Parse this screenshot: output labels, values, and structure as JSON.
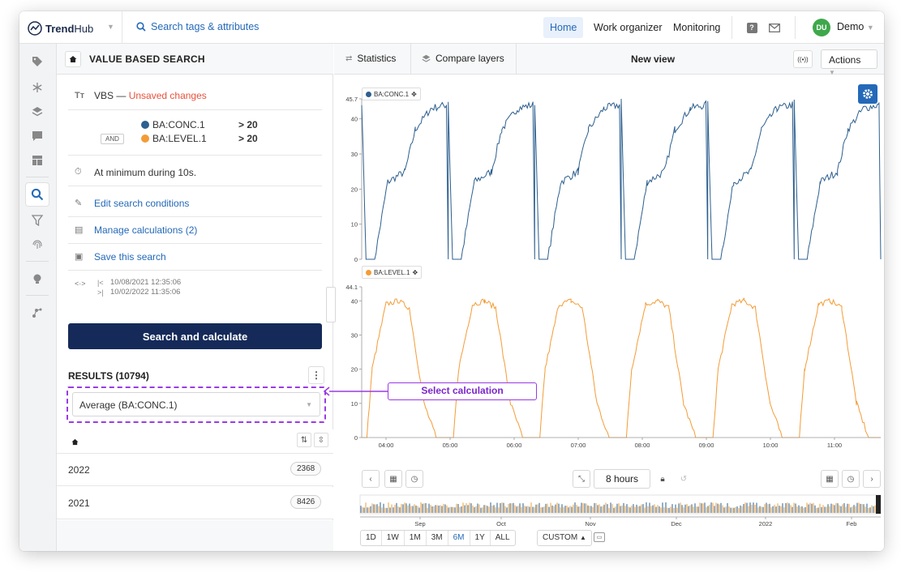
{
  "app": {
    "brand_bold": "Trend",
    "brand_rest": "Hub"
  },
  "search": {
    "label": "Search tags & attributes"
  },
  "nav": {
    "home": "Home",
    "work_organizer": "Work organizer",
    "monitoring": "Monitoring"
  },
  "user": {
    "initials": "DU",
    "name": "Demo"
  },
  "colors": {
    "accent": "#2469b8",
    "primary_dark": "#162a59",
    "series_conc": "#2d5f8f",
    "series_level": "#f39c37",
    "callout": "#9a3be3",
    "unsaved": "#e5533d",
    "avatar": "#3fa84b"
  },
  "sidebar_icons": [
    "tag-icon",
    "snowflake-icon",
    "layers-icon",
    "comment-icon",
    "dashboard-icon",
    "search-icon",
    "filter-icon",
    "fingerprint-icon",
    "bulb-icon",
    "network-icon"
  ],
  "left": {
    "title": "VALUE BASED SEARCH",
    "vbs_name": "VBS",
    "vbs_dash": "—",
    "unsaved": "Unsaved changes",
    "cond1_tag": "BA:CONC.1",
    "cond1_op": "> 20",
    "and_label": "AND",
    "cond2_tag": "BA:LEVEL.1",
    "cond2_op": "> 20",
    "duration": "At minimum during 10s.",
    "edit": "Edit search conditions",
    "manage": "Manage calculations (2)",
    "save": "Save this search",
    "range_start": "10/08/2021 12:35:06",
    "range_end": "10/02/2022 11:35:06",
    "search_button": "Search and calculate",
    "results": "RESULTS (10794)",
    "calc_select": "Average (BA:CONC.1)",
    "rows": [
      {
        "year": "2022",
        "count": "2368"
      },
      {
        "year": "2021",
        "count": "8426"
      }
    ]
  },
  "right": {
    "tab_statistics": "Statistics",
    "tab_compare": "Compare layers",
    "view_title": "New view",
    "actions": "Actions",
    "chip1": "BA:CONC.1",
    "chip2": "BA:LEVEL.1",
    "range_label": "8 hours",
    "zoom_options": [
      "1D",
      "1W",
      "1M",
      "3M",
      "6M",
      "1Y",
      "ALL"
    ],
    "zoom_selected": "6M",
    "custom": "CUSTOM",
    "callout": "Select calculation"
  },
  "chart_data": [
    {
      "type": "line",
      "series": [
        {
          "name": "BA:CONC.1",
          "color": "#2d5f8f"
        }
      ],
      "ylim": [
        0,
        45.7
      ],
      "y_ticks": [
        "45.7",
        "40",
        "30",
        "20",
        "10",
        "0"
      ],
      "x": [
        0,
        0.05,
        0.15,
        0.3,
        0.5,
        0.62,
        0.8,
        0.98,
        1.0
      ],
      "x_unit": "cycle fraction",
      "values": [
        45,
        0,
        0,
        22,
        25,
        37,
        43,
        44,
        0
      ],
      "cycles": 6
    },
    {
      "type": "line",
      "series": [
        {
          "name": "BA:LEVEL.1",
          "color": "#f39c37"
        }
      ],
      "ylim": [
        0,
        44.1
      ],
      "y_ticks": [
        "44.1",
        "40",
        "30",
        "20",
        "10",
        "0"
      ],
      "x_ticks": [
        "04:00",
        "05:00",
        "06:00",
        "07:00",
        "08:00",
        "09:00",
        "10:00",
        "11:00"
      ],
      "x": [
        0,
        0.06,
        0.12,
        0.28,
        0.42,
        0.55,
        0.72,
        0.86,
        1.0
      ],
      "x_unit": "cycle fraction",
      "values": [
        0,
        0,
        20,
        39,
        40,
        38,
        10,
        0,
        0
      ],
      "cycles": 6
    },
    {
      "type": "area",
      "title": "",
      "x_ticks": [
        "Sep",
        "Oct",
        "Nov",
        "Dec",
        "2022",
        "Feb"
      ]
    }
  ]
}
